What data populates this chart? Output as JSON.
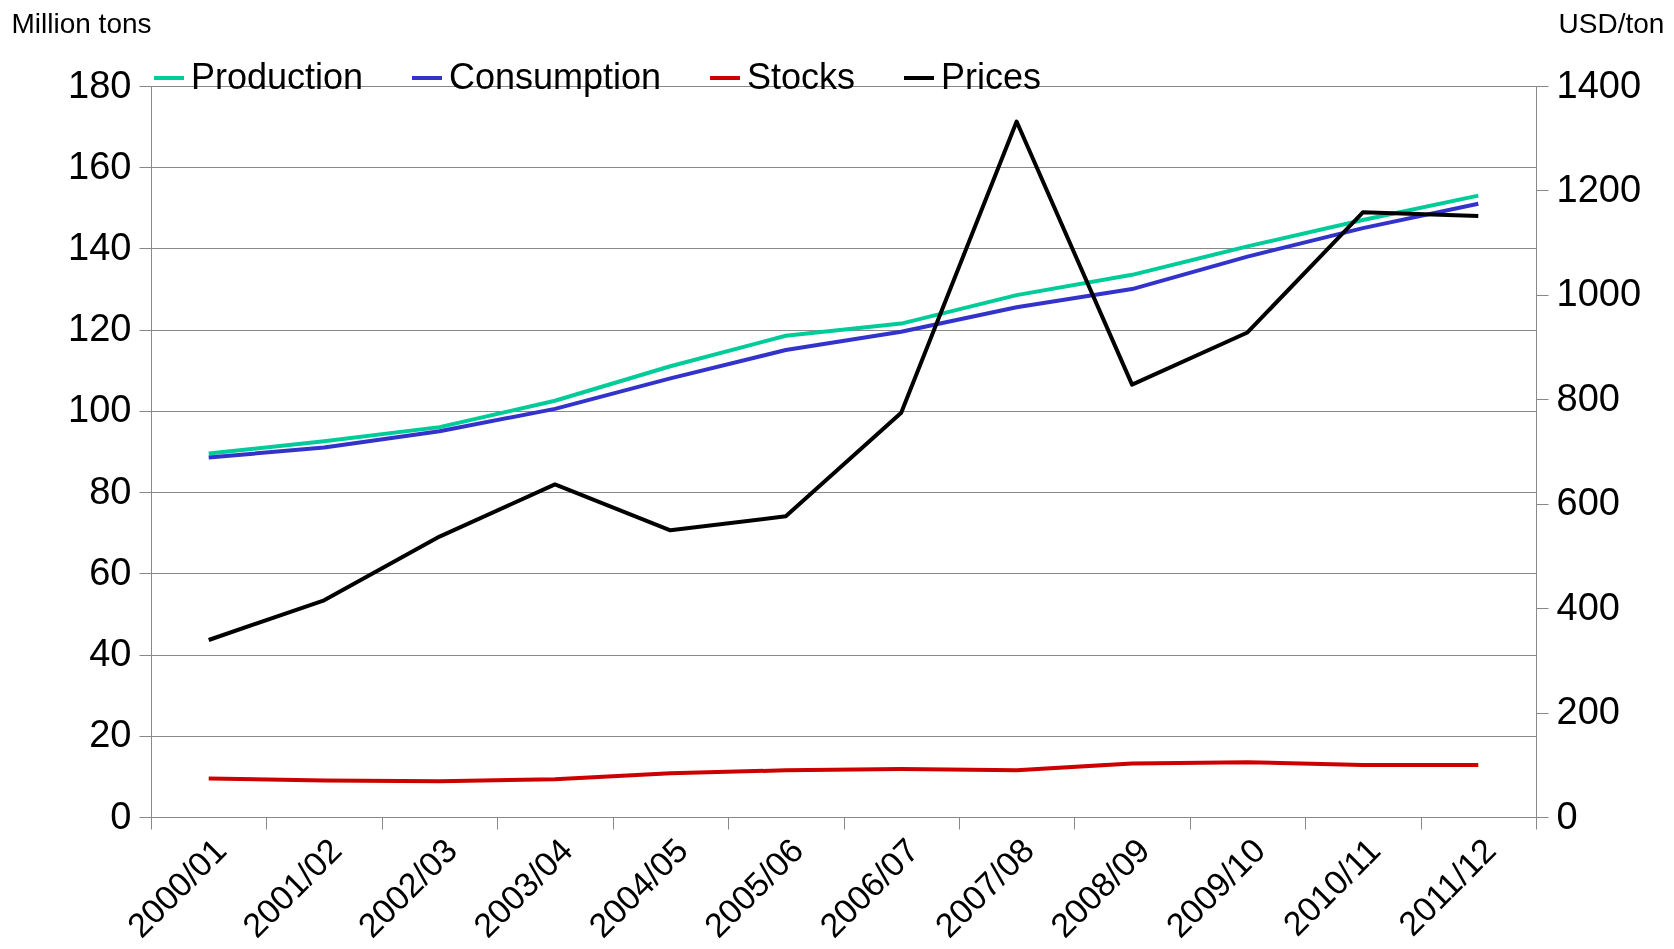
{
  "chart_data": {
    "type": "line",
    "ylabel": "Million tons",
    "y2label": "USD/ton",
    "categories": [
      "2000/01",
      "2001/02",
      "2002/03",
      "2003/04",
      "2004/05",
      "2005/06",
      "2006/07",
      "2007/08",
      "2008/09",
      "2009/10",
      "2010/11",
      "2011/12"
    ],
    "series": [
      {
        "name": "Production",
        "color": "#00cc99",
        "values": [
          89.5,
          92.5,
          96,
          102.5,
          111,
          118.5,
          121.5,
          128.5,
          133.5,
          140.5,
          147,
          153
        ]
      },
      {
        "name": "Consumption",
        "color": "#3333cc",
        "values": [
          88.5,
          91,
          95,
          100.5,
          108,
          115,
          119.5,
          125.5,
          130,
          138,
          145,
          151
        ]
      },
      {
        "name": "Stocks",
        "color": "#cc0000",
        "values": [
          9.5,
          9,
          8.8,
          9.3,
          10.8,
          11.5,
          11.8,
          11.5,
          13.2,
          13.5,
          12.8,
          12.8
        ]
      },
      {
        "name": "Prices",
        "color": "#000000",
        "axis": "y2",
        "values": [
          339,
          415,
          537,
          637,
          549,
          576,
          774,
          1332,
          828,
          928,
          1158,
          1151
        ]
      }
    ],
    "ylim": [
      0,
      180
    ],
    "yticks": [
      0,
      20,
      40,
      60,
      80,
      100,
      120,
      140,
      160,
      180
    ],
    "y2lim": [
      0,
      1400
    ],
    "y2ticks": [
      0,
      200,
      400,
      600,
      800,
      1000,
      1200,
      1400
    ],
    "grid": "y",
    "legend": "top",
    "marker": "none",
    "line_style": "solid"
  }
}
